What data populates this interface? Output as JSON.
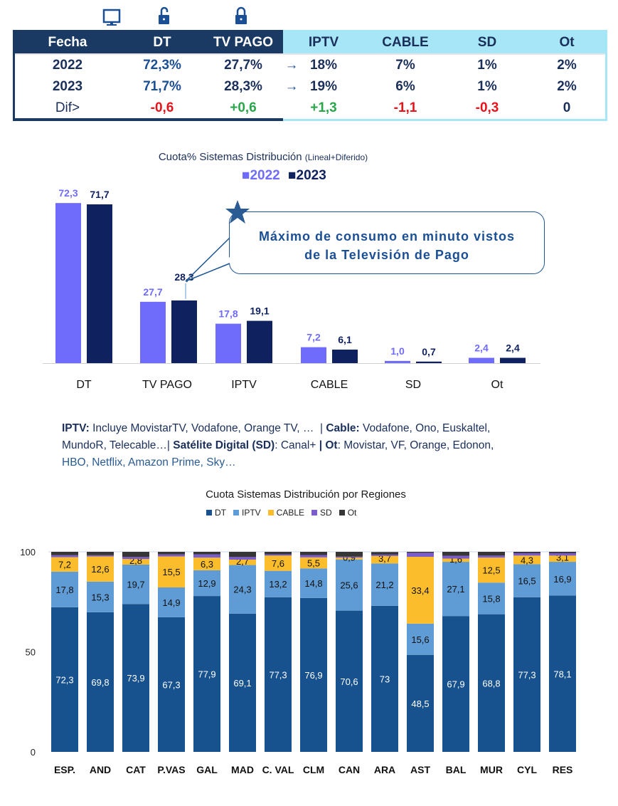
{
  "table": {
    "icons": [
      "monitor-icon",
      "unlocked-padlock-icon",
      "locked-padlock-icon"
    ],
    "headers": [
      "Fecha",
      "DT",
      "TV PAGO",
      "IPTV",
      "CABLE",
      "SD",
      "Ot"
    ],
    "rows": [
      [
        "2022",
        "72,3%",
        "27,7%",
        "18%",
        "7%",
        "1%",
        "2%"
      ],
      [
        "2023",
        "71,7%",
        "28,3%",
        "19%",
        "6%",
        "1%",
        "2%"
      ],
      [
        "Dif>",
        "-0,6",
        "+0,6",
        "+1,3",
        "-1,1",
        "-0,3",
        "0"
      ]
    ],
    "arrow": "→"
  },
  "chart_data": [
    {
      "type": "bar",
      "title": "Cuota% Sistemas Distribución",
      "subtitle": "(Lineal+Diferido)",
      "categories": [
        "DT",
        "TV PAGO",
        "IPTV",
        "CABLE",
        "SD",
        "Ot"
      ],
      "series": [
        {
          "name": "2022",
          "color": "#6f6cfb",
          "values": [
            72.3,
            27.7,
            17.8,
            7.2,
            1.0,
            2.4
          ],
          "labels": [
            "72,3",
            "27,7",
            "17,8",
            "7,2",
            "1,0",
            "2,4"
          ]
        },
        {
          "name": "2023",
          "color": "#0f215e",
          "values": [
            71.7,
            28.3,
            19.1,
            6.1,
            0.7,
            2.4
          ],
          "labels": [
            "71,7",
            "28,3",
            "19,1",
            "6,1",
            "0,7",
            "2,4"
          ]
        }
      ],
      "legend": "top",
      "annotation": [
        "Máximo  de consumo en minuto vistos",
        "de la Televisión  de Pago"
      ]
    },
    {
      "type": "bar",
      "stacked": true,
      "title": "Cuota Sistemas Distribución por  Regiones",
      "categories": [
        "ESP.",
        "AND",
        "CAT",
        "P.VAS",
        "GAL",
        "MAD",
        "C. VAL",
        "CLM",
        "CAN",
        "ARA",
        "AST",
        "BAL",
        "MUR",
        "CYL",
        "RES"
      ],
      "yticks": [
        "0",
        "50",
        "100"
      ],
      "ylim": [
        0,
        100
      ],
      "legend": "top",
      "series": [
        {
          "name": "DT",
          "color": "#17528f",
          "values": [
            72.3,
            69.8,
            73.9,
            67.3,
            77.9,
            69.1,
            77.3,
            76.9,
            70.6,
            73,
            48.5,
            67.9,
            68.8,
            77.3,
            78.1
          ],
          "labels": [
            "72,3",
            "69,8",
            "73,9",
            "67,3",
            "77,9",
            "69,1",
            "77,3",
            "76,9",
            "70,6",
            "73",
            "48,5",
            "67,9",
            "68,8",
            "77,3",
            "78,1"
          ]
        },
        {
          "name": "IPTV",
          "color": "#5f9bd4",
          "values": [
            17.8,
            15.3,
            19.7,
            14.9,
            12.9,
            24.3,
            13.2,
            14.8,
            25.6,
            21.2,
            15.6,
            27.1,
            15.8,
            16.5,
            16.9
          ],
          "labels": [
            "17,8",
            "15,3",
            "19,7",
            "14,9",
            "12,9",
            "24,3",
            "13,2",
            "14,8",
            "25,6",
            "21,2",
            "15,6",
            "27,1",
            "15,8",
            "16,5",
            "16,9"
          ]
        },
        {
          "name": "CABLE",
          "color": "#fbbd2c",
          "values": [
            7.2,
            12.6,
            2.8,
            15.5,
            6.3,
            2.7,
            7.6,
            5.5,
            0.9,
            3.7,
            33.4,
            1.6,
            12.5,
            4.3,
            3.1
          ],
          "labels": [
            "7,2",
            "12,6",
            "2,8",
            "15,5",
            "6,3",
            "2,7",
            "7,6",
            "5,5",
            "0,9",
            "3,7",
            "33,4",
            "1,6",
            "12,5",
            "4,3",
            "3,1"
          ]
        },
        {
          "name": "SD",
          "color": "#7b5ccc",
          "values": [
            1.0,
            0.6,
            1.0,
            1.0,
            1.6,
            1.3,
            0.6,
            1.2,
            0.5,
            0.7,
            2.0,
            1.4,
            1.0,
            1.2,
            1.2
          ]
        },
        {
          "name": "Ot",
          "color": "#363636",
          "values": [
            1.7,
            1.7,
            2.6,
            1.3,
            1.3,
            2.6,
            1.3,
            1.6,
            2.4,
            1.3,
            0.5,
            2.0,
            1.9,
            0.7,
            0.7
          ]
        }
      ]
    }
  ],
  "footnote": [
    {
      "t": "IPTV:",
      "b": true
    },
    {
      "t": " Incluye MovistarTV, Vodafone, Orange TV, …  | ",
      "b": false
    },
    {
      "t": "Cable:",
      "b": true
    },
    {
      "t": " Vodafone, Ono, Euskaltel,",
      "b": false
    },
    {
      "t": "\nMundoR, Telecable…| ",
      "b": false
    },
    {
      "t": "Satélite Digital (SD)",
      "b": true
    },
    {
      "t": ": Canal+ ",
      "b": false
    },
    {
      "t": "| Ot",
      "b": true
    },
    {
      "t": ": Movistar, VF, Orange, Edonon,",
      "b": false
    },
    {
      "t": "\nHBO, Netflix, Amazon Prime, Sky…",
      "b": false,
      "blue": true
    }
  ]
}
